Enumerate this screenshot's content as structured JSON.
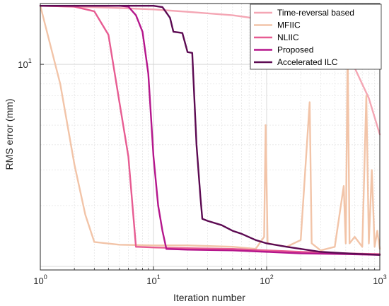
{
  "chart_data": {
    "type": "line",
    "xscale": "log",
    "yscale": "log",
    "xlabel": "Iteration number",
    "ylabel": "RMS error (mm)",
    "xlim": [
      1,
      1000
    ],
    "ylim": [
      0.96,
      20
    ],
    "x_ticks": [
      {
        "value": 1,
        "base": "10",
        "exp": "0"
      },
      {
        "value": 10,
        "base": "10",
        "exp": "1"
      },
      {
        "value": 100,
        "base": "10",
        "exp": "2"
      },
      {
        "value": 1000,
        "base": "10",
        "exp": "3"
      }
    ],
    "y_ticks": [
      {
        "value": 10,
        "base": "10",
        "exp": "1"
      }
    ],
    "grid": true,
    "minor_grid": true,
    "legend_position": "top-right",
    "series": [
      {
        "name": "Time-reversal based",
        "color": "#f4a6b4",
        "points": [
          [
            1,
            19.5
          ],
          [
            2,
            19.3
          ],
          [
            5,
            19.0
          ],
          [
            10,
            18.7
          ],
          [
            20,
            18.2
          ],
          [
            50,
            17.5
          ],
          [
            100,
            16.6
          ],
          [
            200,
            15.0
          ],
          [
            400,
            12.5
          ],
          [
            600,
            9.6
          ],
          [
            800,
            6.8
          ],
          [
            1000,
            4.5
          ]
        ]
      },
      {
        "name": "MFIIC",
        "color": "#f2c4a8",
        "points": [
          [
            1,
            19.5
          ],
          [
            1.5,
            8.0
          ],
          [
            2,
            3.2
          ],
          [
            2.5,
            1.8
          ],
          [
            3,
            1.32
          ],
          [
            5,
            1.28
          ],
          [
            10,
            1.27
          ],
          [
            20,
            1.27
          ],
          [
            50,
            1.25
          ],
          [
            80,
            1.22
          ],
          [
            95,
            1.4
          ],
          [
            98,
            5.0
          ],
          [
            102,
            1.3
          ],
          [
            150,
            1.25
          ],
          [
            200,
            1.35
          ],
          [
            240,
            6.5
          ],
          [
            250,
            1.3
          ],
          [
            300,
            1.2
          ],
          [
            400,
            1.25
          ],
          [
            480,
            2.5
          ],
          [
            500,
            1.3
          ],
          [
            520,
            12.0
          ],
          [
            540,
            1.3
          ],
          [
            600,
            1.4
          ],
          [
            700,
            1.25
          ],
          [
            760,
            7.0
          ],
          [
            800,
            1.3
          ],
          [
            850,
            3.0
          ],
          [
            900,
            1.25
          ],
          [
            950,
            1.5
          ],
          [
            1000,
            1.22
          ]
        ]
      },
      {
        "name": "NLIIC",
        "color": "#e75c92",
        "points": [
          [
            1,
            19.5
          ],
          [
            2,
            19.3
          ],
          [
            3,
            18.3
          ],
          [
            4,
            14.0
          ],
          [
            5,
            6.5
          ],
          [
            6,
            3.5
          ],
          [
            7,
            1.25
          ],
          [
            10,
            1.24
          ],
          [
            20,
            1.23
          ],
          [
            50,
            1.22
          ],
          [
            100,
            1.2
          ],
          [
            200,
            1.18
          ],
          [
            500,
            1.16
          ],
          [
            1000,
            1.15
          ]
        ]
      },
      {
        "name": "Proposed",
        "color": "#b5168c",
        "points": [
          [
            1,
            19.5
          ],
          [
            5,
            19.5
          ],
          [
            6,
            19.3
          ],
          [
            7,
            17.5
          ],
          [
            8,
            14.5
          ],
          [
            9,
            9.0
          ],
          [
            10,
            3.5
          ],
          [
            11,
            2.0
          ],
          [
            12,
            1.5
          ],
          [
            13,
            1.22
          ],
          [
            20,
            1.21
          ],
          [
            50,
            1.2
          ],
          [
            100,
            1.18
          ],
          [
            200,
            1.16
          ],
          [
            500,
            1.15
          ],
          [
            1000,
            1.14
          ]
        ]
      },
      {
        "name": "Accelerated ILC",
        "color": "#5c0a52",
        "points": [
          [
            1,
            19.5
          ],
          [
            10,
            19.5
          ],
          [
            12,
            19.2
          ],
          [
            14,
            17.0
          ],
          [
            15,
            14.5
          ],
          [
            18,
            14.3
          ],
          [
            20,
            11.5
          ],
          [
            22,
            11.4
          ],
          [
            24,
            4.0
          ],
          [
            26,
            2.2
          ],
          [
            27,
            1.72
          ],
          [
            30,
            1.68
          ],
          [
            40,
            1.6
          ],
          [
            50,
            1.5
          ],
          [
            60,
            1.45
          ],
          [
            80,
            1.35
          ],
          [
            100,
            1.3
          ],
          [
            150,
            1.25
          ],
          [
            200,
            1.22
          ],
          [
            300,
            1.18
          ],
          [
            500,
            1.16
          ],
          [
            1000,
            1.14
          ]
        ]
      }
    ]
  }
}
